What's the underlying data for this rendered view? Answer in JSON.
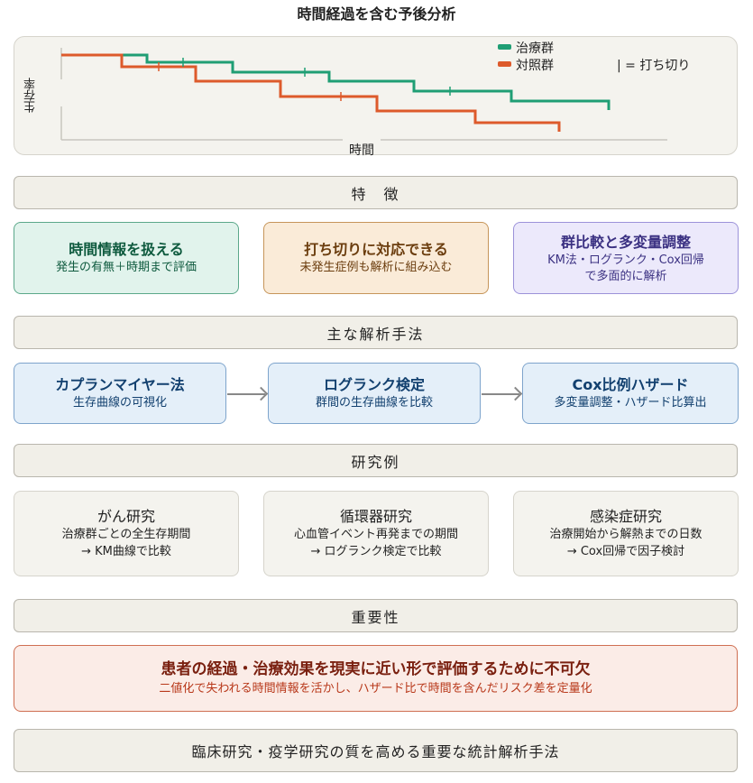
{
  "title": "時間経過を含む予後分析",
  "chart": {
    "ylabel": "生存率",
    "xlabel": "時間",
    "legend": [
      {
        "label": "治療群",
        "color": "#1f9e74"
      },
      {
        "label": "対照群",
        "color": "#dd5a2b"
      }
    ],
    "censor_note": "| = 打ち切り"
  },
  "features": {
    "header": "特　徴",
    "items": [
      {
        "title": "時間情報を扱える",
        "sub": "発生の有無＋時期まで評価"
      },
      {
        "title": "打ち切りに対応できる",
        "sub": "未発生症例も解析に組み込む"
      },
      {
        "title": "群比較と多変量調整",
        "sub": "KM法・ログランク・Cox回帰\nで多面的に解析"
      }
    ]
  },
  "methods": {
    "header": "主な解析手法",
    "items": [
      {
        "title": "カプランマイヤー法",
        "sub": "生存曲線の可視化"
      },
      {
        "title": "ログランク検定",
        "sub": "群間の生存曲線を比較"
      },
      {
        "title": "Cox比例ハザード",
        "sub": "多変量調整・ハザード比算出"
      }
    ]
  },
  "examples": {
    "header": "研究例",
    "items": [
      {
        "title": "がん研究",
        "sub1": "治療群ごとの全生存期間",
        "sub2": "→ KM曲線で比較"
      },
      {
        "title": "循環器研究",
        "sub1": "心血管イベント再発までの期間",
        "sub2": "→ ログランク検定で比較"
      },
      {
        "title": "感染症研究",
        "sub1": "治療開始から解熱までの日数",
        "sub2": "→ Cox回帰で因子検討"
      }
    ]
  },
  "importance": {
    "header": "重要性",
    "title": "患者の経過・治療効果を現実に近い形で評価するために不可欠",
    "sub": "二値化で失われる時間情報を活かし、ハザード比で時間を含んだリスク差を定量化"
  },
  "footer": "臨床研究・疫学研究の質を高める重要な統計解析手法"
}
